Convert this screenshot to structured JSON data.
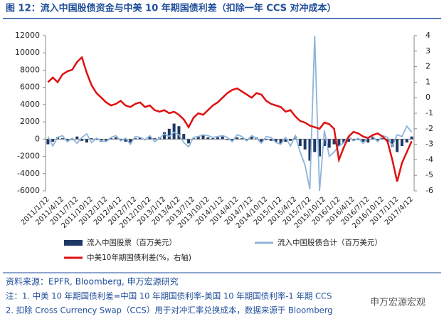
{
  "chart_data": {
    "type": "combo",
    "title": "图 12：流入中国股债资金与中美 10 年期国债利差（扣除一年 CCS 对冲成本）",
    "categories": [
      "2011/1/12",
      null,
      null,
      "2011/4/12",
      null,
      null,
      "2011/7/12",
      null,
      null,
      "2011/10/12",
      null,
      null,
      "2012/1/12",
      null,
      null,
      "2012/4/12",
      null,
      null,
      "2012/7/12",
      null,
      null,
      "2012/10/12",
      null,
      null,
      "2013/1/12",
      null,
      null,
      "2013/4/12",
      null,
      null,
      "2013/7/12",
      null,
      null,
      "2013/10/12",
      null,
      null,
      "2014/1/12",
      null,
      null,
      "2014/4/12",
      null,
      null,
      "2014/7/12",
      null,
      null,
      "2014/10/12",
      null,
      null,
      "2015/1/12",
      null,
      null,
      "2015/4/12",
      null,
      null,
      "2015/7/12",
      null,
      null,
      "2015/10/12",
      null,
      null,
      "2016/1/12",
      null,
      null,
      "2016/4/12",
      null,
      null,
      "2016/7/12",
      null,
      null,
      "2016/10/12",
      null,
      null,
      "2017/1/12",
      null,
      null,
      "2017/4/12"
    ],
    "series": [
      {
        "name": "流入中国股票（百万美元）",
        "type": "bar",
        "color": "#1f3864",
        "values": [
          -600,
          -300,
          200,
          100,
          -200,
          -100,
          300,
          -200,
          -400,
          100,
          -100,
          -300,
          -200,
          100,
          200,
          -100,
          -300,
          -400,
          100,
          200,
          -100,
          300,
          100,
          200,
          800,
          1200,
          1800,
          1500,
          600,
          -500,
          100,
          300,
          400,
          200,
          100,
          200,
          300,
          -100,
          -200,
          200,
          100,
          -100,
          300,
          200,
          -300,
          -100,
          -200,
          -300,
          -500,
          -300,
          -200,
          300,
          -800,
          -1200,
          -2500,
          -1500,
          -2000,
          -800,
          -1000,
          -600,
          -800,
          -400,
          -300,
          -200,
          -100,
          -300,
          -400,
          200,
          -200,
          100,
          -300,
          -900,
          -1500,
          -800,
          -400,
          300
        ]
      },
      {
        "name": "流入中国股债合计（百万美元）",
        "type": "line",
        "color": "#8eb4d9",
        "values": [
          300,
          -800,
          200,
          400,
          -300,
          100,
          -500,
          200,
          600,
          -400,
          100,
          -200,
          -300,
          200,
          400,
          -200,
          100,
          -600,
          300,
          200,
          -100,
          400,
          -300,
          100,
          600,
          300,
          800,
          500,
          -400,
          -900,
          200,
          300,
          500,
          400,
          200,
          300,
          400,
          200,
          -300,
          500,
          300,
          -200,
          400,
          100,
          -500,
          300,
          200,
          -400,
          -600,
          200,
          -800,
          400,
          -1500,
          -3000,
          -5800,
          12000,
          -6000,
          1000,
          -2000,
          -1500,
          -800,
          -400,
          300,
          -200,
          100,
          -500,
          200,
          300,
          -300,
          400,
          200,
          -800,
          500,
          300,
          1500,
          800
        ]
      },
      {
        "name": "中美10年期国债利差(%，右轴)",
        "type": "line",
        "axis": "y2",
        "color": "#e01010",
        "values": [
          1.0,
          1.3,
          1.0,
          1.5,
          1.7,
          1.8,
          2.3,
          2.6,
          1.6,
          0.8,
          0.3,
          0.0,
          -0.3,
          -0.5,
          -0.4,
          -0.2,
          -0.5,
          -0.6,
          -0.4,
          -0.3,
          -0.6,
          -0.5,
          -0.8,
          -0.9,
          -0.8,
          -1.0,
          -0.9,
          -1.1,
          -1.4,
          -1.9,
          -1.3,
          -1.0,
          -1.1,
          -0.8,
          -0.5,
          -0.3,
          0.0,
          0.3,
          0.5,
          0.6,
          0.4,
          0.2,
          0.0,
          0.3,
          0.2,
          -0.2,
          -0.4,
          -0.5,
          -0.6,
          -0.9,
          -0.8,
          -1.2,
          -1.5,
          -1.6,
          -1.8,
          -1.9,
          -2.0,
          -1.6,
          -1.7,
          -2.0,
          -4.0,
          -3.2,
          -2.5,
          -2.2,
          -2.3,
          -2.5,
          -2.6,
          -2.4,
          -2.3,
          -2.5,
          -2.8,
          -4.0,
          -5.4,
          -4.2,
          -3.5,
          -2.8
        ]
      }
    ],
    "ylim": [
      -6000,
      12000
    ],
    "yticks": [
      -6000,
      -4000,
      -2000,
      0,
      2000,
      4000,
      6000,
      8000,
      10000,
      12000
    ],
    "y2lim": [
      -6,
      4
    ],
    "y2ticks": [
      -6,
      -5,
      -4,
      -3,
      -2,
      -1,
      0,
      1,
      2,
      3,
      4
    ],
    "grid": false
  },
  "source": "资料来源：EPFR, Bloomberg, 申万宏源研究",
  "notes": [
    "注：1. 中美 10 年期国债利差=中国 10 年期国债利率-美国 10 年期国债利率-1 年期 CCS",
    "2. 扣除 Cross Currency Swap（CCS）用于对冲汇率兑换成本，数据来源于 Bloomberg"
  ],
  "watermark": "申万宏源宏观"
}
